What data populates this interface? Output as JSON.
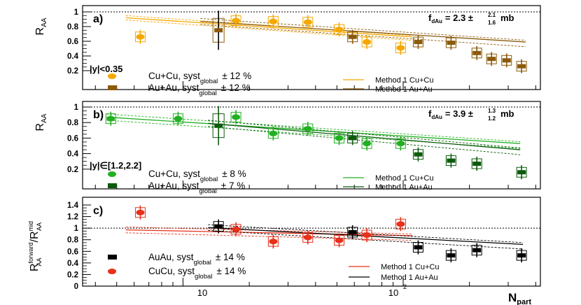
{
  "figure": {
    "xaxis": {
      "label_main": "N",
      "label_sub": "part",
      "tick_labels": [
        "10",
        "10",
        "2"
      ]
    },
    "colors": {
      "cu_a": "#f5a800",
      "au_a": "#8b5a0a",
      "cu_b": "#22b022",
      "au_b": "#0c5a0c",
      "cu_c": "#e8301a",
      "au_c": "#000000"
    }
  },
  "chart_data": [
    {
      "type": "scatter",
      "panel_label": "a)",
      "ylabel_main": "R",
      "ylabel_sub": "AA",
      "ylim": [
        0,
        1.05
      ],
      "yticks": [
        "0.2",
        "0.4",
        "0.6",
        "0.8",
        "1"
      ],
      "xlim": [
        3.5,
        420
      ],
      "xscale": "log",
      "annotation": {
        "prefix": "f",
        "prefix_sub": "dAu",
        "text": "= 2.3 ±",
        "sup": "2.1",
        "sub": "1.6",
        "unit": "mb"
      },
      "rapidity_label": "|y|<0.35",
      "legend": [
        {
          "key": "cu",
          "text": "Cu+Cu, syst",
          "sub": "global",
          "tail": "± 12 %"
        },
        {
          "key": "au",
          "text": "Au+Au, syst",
          "sub": "global",
          "tail": "± 12 %"
        }
      ],
      "method_legend": [
        "Method 1 Cu+Cu",
        "Method 1 Au+Au"
      ],
      "series": [
        {
          "name": "Cu+Cu",
          "key": "cu",
          "points": [
            [
              6.4,
              0.66
            ],
            [
              17.4,
              0.88
            ],
            [
              25.7,
              0.87
            ],
            [
              36.9,
              0.86
            ],
            [
              51.2,
              0.76
            ],
            [
              68.4,
              0.59
            ],
            [
              97.4,
              0.51
            ]
          ]
        },
        {
          "name": "Au+Au",
          "key": "au",
          "points": [
            [
              14.5,
              0.75
            ],
            [
              58.9,
              0.66
            ],
            [
              117,
              0.59
            ],
            [
              165,
              0.58
            ],
            [
              216,
              0.44
            ],
            [
              252,
              0.36
            ],
            [
              295,
              0.34
            ],
            [
              345,
              0.26
            ]
          ]
        }
      ],
      "curves": [
        {
          "key": "cu",
          "x0": 5.5,
          "x1": 110,
          "center": [
            0.92,
            0.66
          ],
          "band": 0.03
        },
        {
          "key": "au",
          "x0": 12,
          "x1": 360,
          "center": [
            0.87,
            0.59
          ],
          "band": 0.04
        }
      ]
    },
    {
      "type": "scatter",
      "panel_label": "b)",
      "ylabel_main": "R",
      "ylabel_sub": "AA",
      "ylim": [
        0,
        1.05
      ],
      "yticks": [
        "0.2",
        "0.4",
        "0.6",
        "0.8",
        "1"
      ],
      "xlim": [
        3.5,
        420
      ],
      "xscale": "log",
      "annotation": {
        "prefix": "f",
        "prefix_sub": "dAu",
        "text": "= 3.9 ±",
        "sup": "1.3",
        "sub": "1.2",
        "unit": "mb"
      },
      "rapidity_label": "|y|∈[1.2,2.2]",
      "legend": [
        {
          "key": "cu",
          "text": "Cu+Cu, syst",
          "sub": "global",
          "tail": "± 8 %"
        },
        {
          "key": "au",
          "text": "Au+Au, syst",
          "sub": "global",
          "tail": "± 7 %"
        }
      ],
      "method_legend": [
        "Method 1 Cu+Cu",
        "Method 1 Au+Au"
      ],
      "series": [
        {
          "name": "Cu+Cu",
          "key": "cu",
          "points": [
            [
              4.7,
              0.85
            ],
            [
              9.5,
              0.85
            ],
            [
              17.4,
              0.87
            ],
            [
              25.7,
              0.66
            ],
            [
              36.9,
              0.72
            ],
            [
              51.2,
              0.6
            ],
            [
              68.4,
              0.53
            ],
            [
              97.4,
              0.53
            ]
          ]
        },
        {
          "name": "Au+Au",
          "key": "au",
          "points": [
            [
              14.5,
              0.76
            ],
            [
              58.9,
              0.6
            ],
            [
              117,
              0.39
            ],
            [
              165,
              0.31
            ],
            [
              216,
              0.27
            ],
            [
              345,
              0.16
            ]
          ]
        }
      ],
      "curves": [
        {
          "key": "cu",
          "x0": 4.5,
          "x1": 340,
          "center": [
            0.87,
            0.53
          ],
          "band": 0.04
        },
        {
          "key": "au",
          "x0": 13,
          "x1": 340,
          "center": [
            0.79,
            0.45
          ],
          "band": 0.04
        }
      ]
    },
    {
      "type": "scatter",
      "panel_label": "c)",
      "ylabel_text": "R",
      "ylabel_sup1": "forward",
      "ylabel_sub1": "AA",
      "ylabel_slash": "/R",
      "ylabel_sup2": "mid",
      "ylabel_sub2": "AA",
      "ylim": [
        0,
        1.5
      ],
      "yticks": [
        "0",
        "0.2",
        "0.4",
        "0.6",
        "0.8",
        "1",
        "1.2",
        "1.4"
      ],
      "xlim": [
        3.5,
        420
      ],
      "xscale": "log",
      "legend": [
        {
          "key": "au",
          "text": "AuAu, syst",
          "sub": "global",
          "tail": "± 14 %"
        },
        {
          "key": "cu",
          "text": "CuCu, syst",
          "sub": "global",
          "tail": "± 14 %"
        }
      ],
      "method_legend": [
        "Method 1 Cu+Cu",
        "Method 1 Au+Au"
      ],
      "series": [
        {
          "name": "CuCu",
          "key": "cu",
          "points": [
            [
              6.4,
              1.27
            ],
            [
              17.4,
              0.98
            ],
            [
              25.7,
              0.77
            ],
            [
              36.9,
              0.84
            ],
            [
              51.2,
              0.79
            ],
            [
              68.4,
              0.88
            ],
            [
              97.4,
              1.07
            ]
          ]
        },
        {
          "name": "AuAu",
          "key": "au",
          "points": [
            [
              14.5,
              1.03
            ],
            [
              58.9,
              0.93
            ],
            [
              117,
              0.67
            ],
            [
              165,
              0.53
            ],
            [
              216,
              0.62
            ],
            [
              345,
              0.53
            ]
          ]
        }
      ],
      "curves": [
        {
          "key": "cu",
          "x0": 5.5,
          "x1": 110,
          "center": [
            0.97,
            0.87
          ],
          "band": 0.05
        },
        {
          "key": "au",
          "x0": 13,
          "x1": 350,
          "center": [
            1.01,
            0.72
          ],
          "band": 0.05
        }
      ]
    }
  ]
}
